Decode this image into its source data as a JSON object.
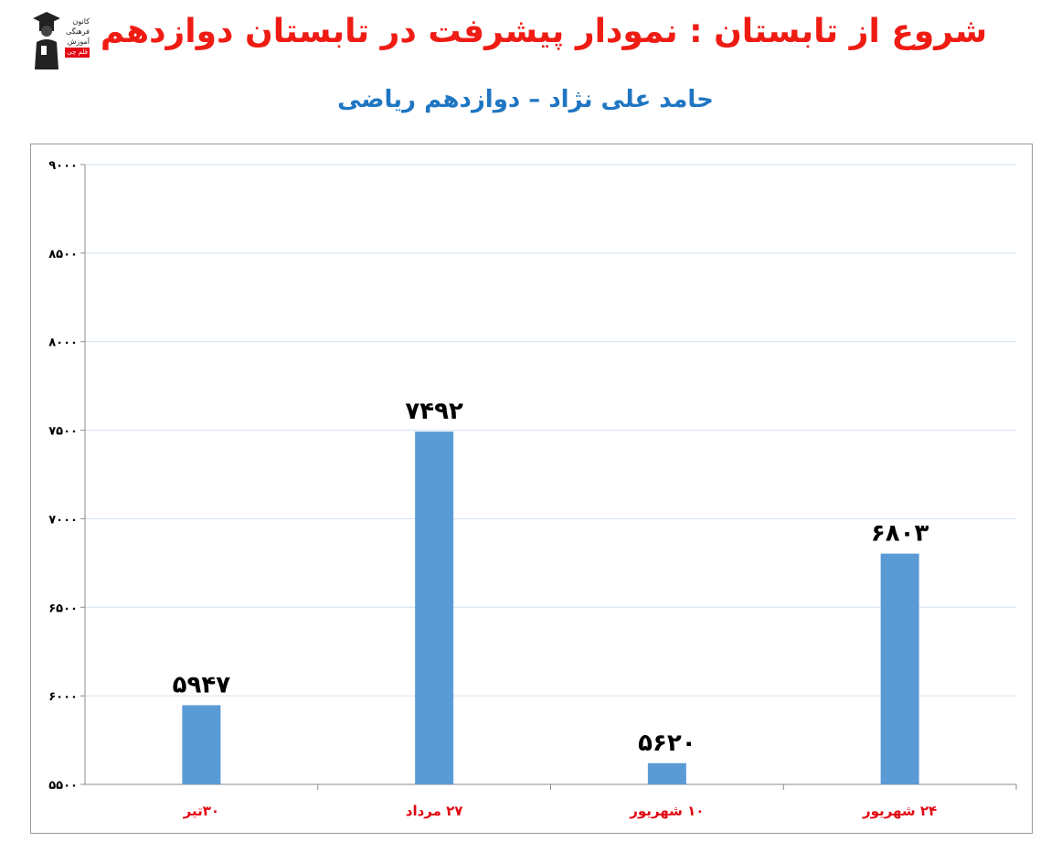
{
  "header": {
    "title": "شروع از تابستان : نمودار پیشرفت در تابستان دوازدهم",
    "subtitle": "حامد علی نژاد – دوازدهم ریاضی"
  },
  "logo": {
    "lines": [
      "کانون",
      "فرهنگی",
      "آموزش"
    ],
    "badge": "قلم چی"
  },
  "colors": {
    "title": "#ef1c14",
    "subtitle": "#1f76c2",
    "bar": "#5b9bd5",
    "category": "#e30613",
    "value_label": "#000000"
  },
  "chart_data": {
    "type": "bar",
    "categories": [
      "۳۰تیر",
      "۲۷ مرداد",
      "۱۰ شهریور",
      "۲۴ شهریور"
    ],
    "values": [
      5947,
      7492,
      5620,
      6803
    ],
    "value_labels": [
      "۵۹۴۷",
      "۷۴۹۲",
      "۵۶۲۰",
      "۶۸۰۳"
    ],
    "ylim": [
      5500,
      9000
    ],
    "yticks": [
      5500,
      6000,
      6500,
      7000,
      7500,
      8000,
      8500,
      9000
    ],
    "ytick_labels": [
      "۵۵۰۰",
      "۶۰۰۰",
      "۶۵۰۰",
      "۷۰۰۰",
      "۷۵۰۰",
      "۸۰۰۰",
      "۸۵۰۰",
      "۹۰۰۰"
    ],
    "grid": true,
    "title": "",
    "xlabel": "",
    "ylabel": ""
  }
}
